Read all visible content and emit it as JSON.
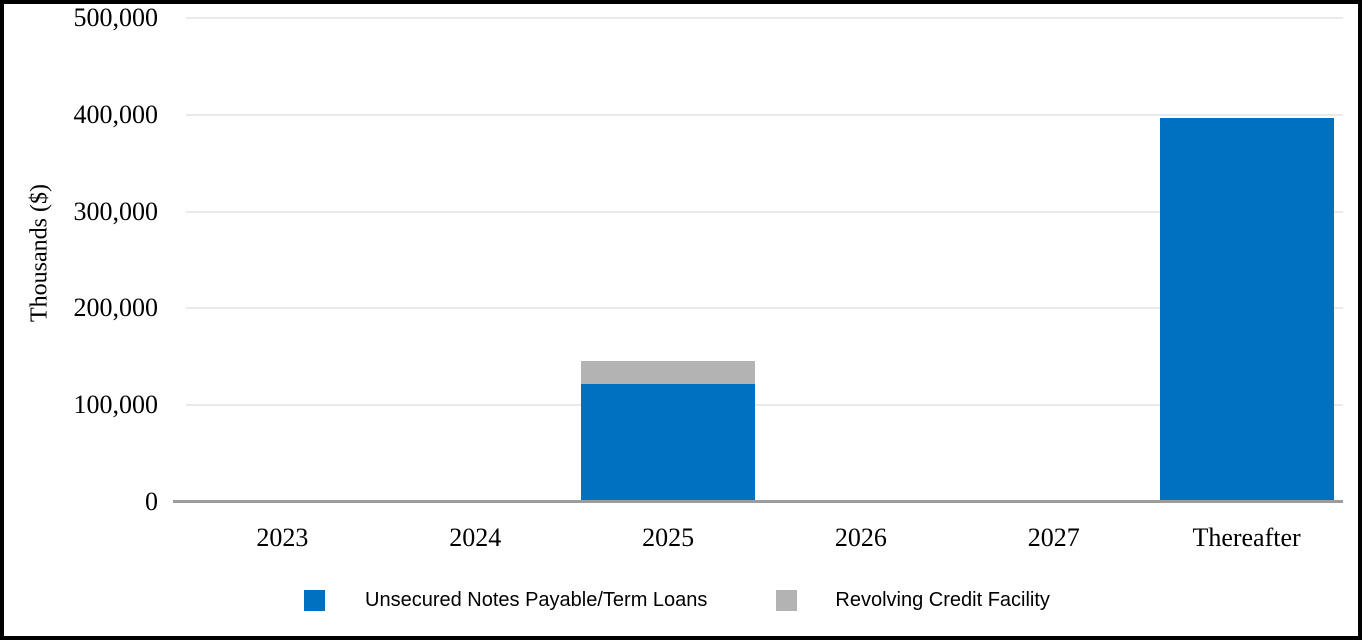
{
  "window": {
    "background_color": "#FFFFFF",
    "frame_border_color": "#000000"
  },
  "chart_data": {
    "type": "bar",
    "stacked": true,
    "title": "",
    "xlabel": "",
    "ylabel": "Thousands ($)",
    "categories": [
      "2023",
      "2024",
      "2025",
      "2026",
      "2027",
      "Thereafter"
    ],
    "series": [
      {
        "name": "Unsecured Notes Payable/Term Loans",
        "color": "#0070C0",
        "values": [
          0,
          0,
          122000,
          0,
          0,
          397000
        ]
      },
      {
        "name": "Revolving Credit Facility",
        "color": "#B3B3B3",
        "values": [
          0,
          0,
          24000,
          0,
          0,
          0
        ]
      }
    ],
    "ylim": [
      0,
      500000
    ],
    "ytick_interval": 100000,
    "yticks": [
      {
        "value": 0,
        "label": "0"
      },
      {
        "value": 100000,
        "label": "100,000"
      },
      {
        "value": 200000,
        "label": "200,000"
      },
      {
        "value": 300000,
        "label": "300,000"
      },
      {
        "value": 400000,
        "label": "400,000"
      },
      {
        "value": 500000,
        "label": "500,000"
      }
    ],
    "grid": true,
    "gridline_color": "#EAEAEA",
    "axis_line_color": "#9C9C9C",
    "legend_position": "bottom"
  }
}
